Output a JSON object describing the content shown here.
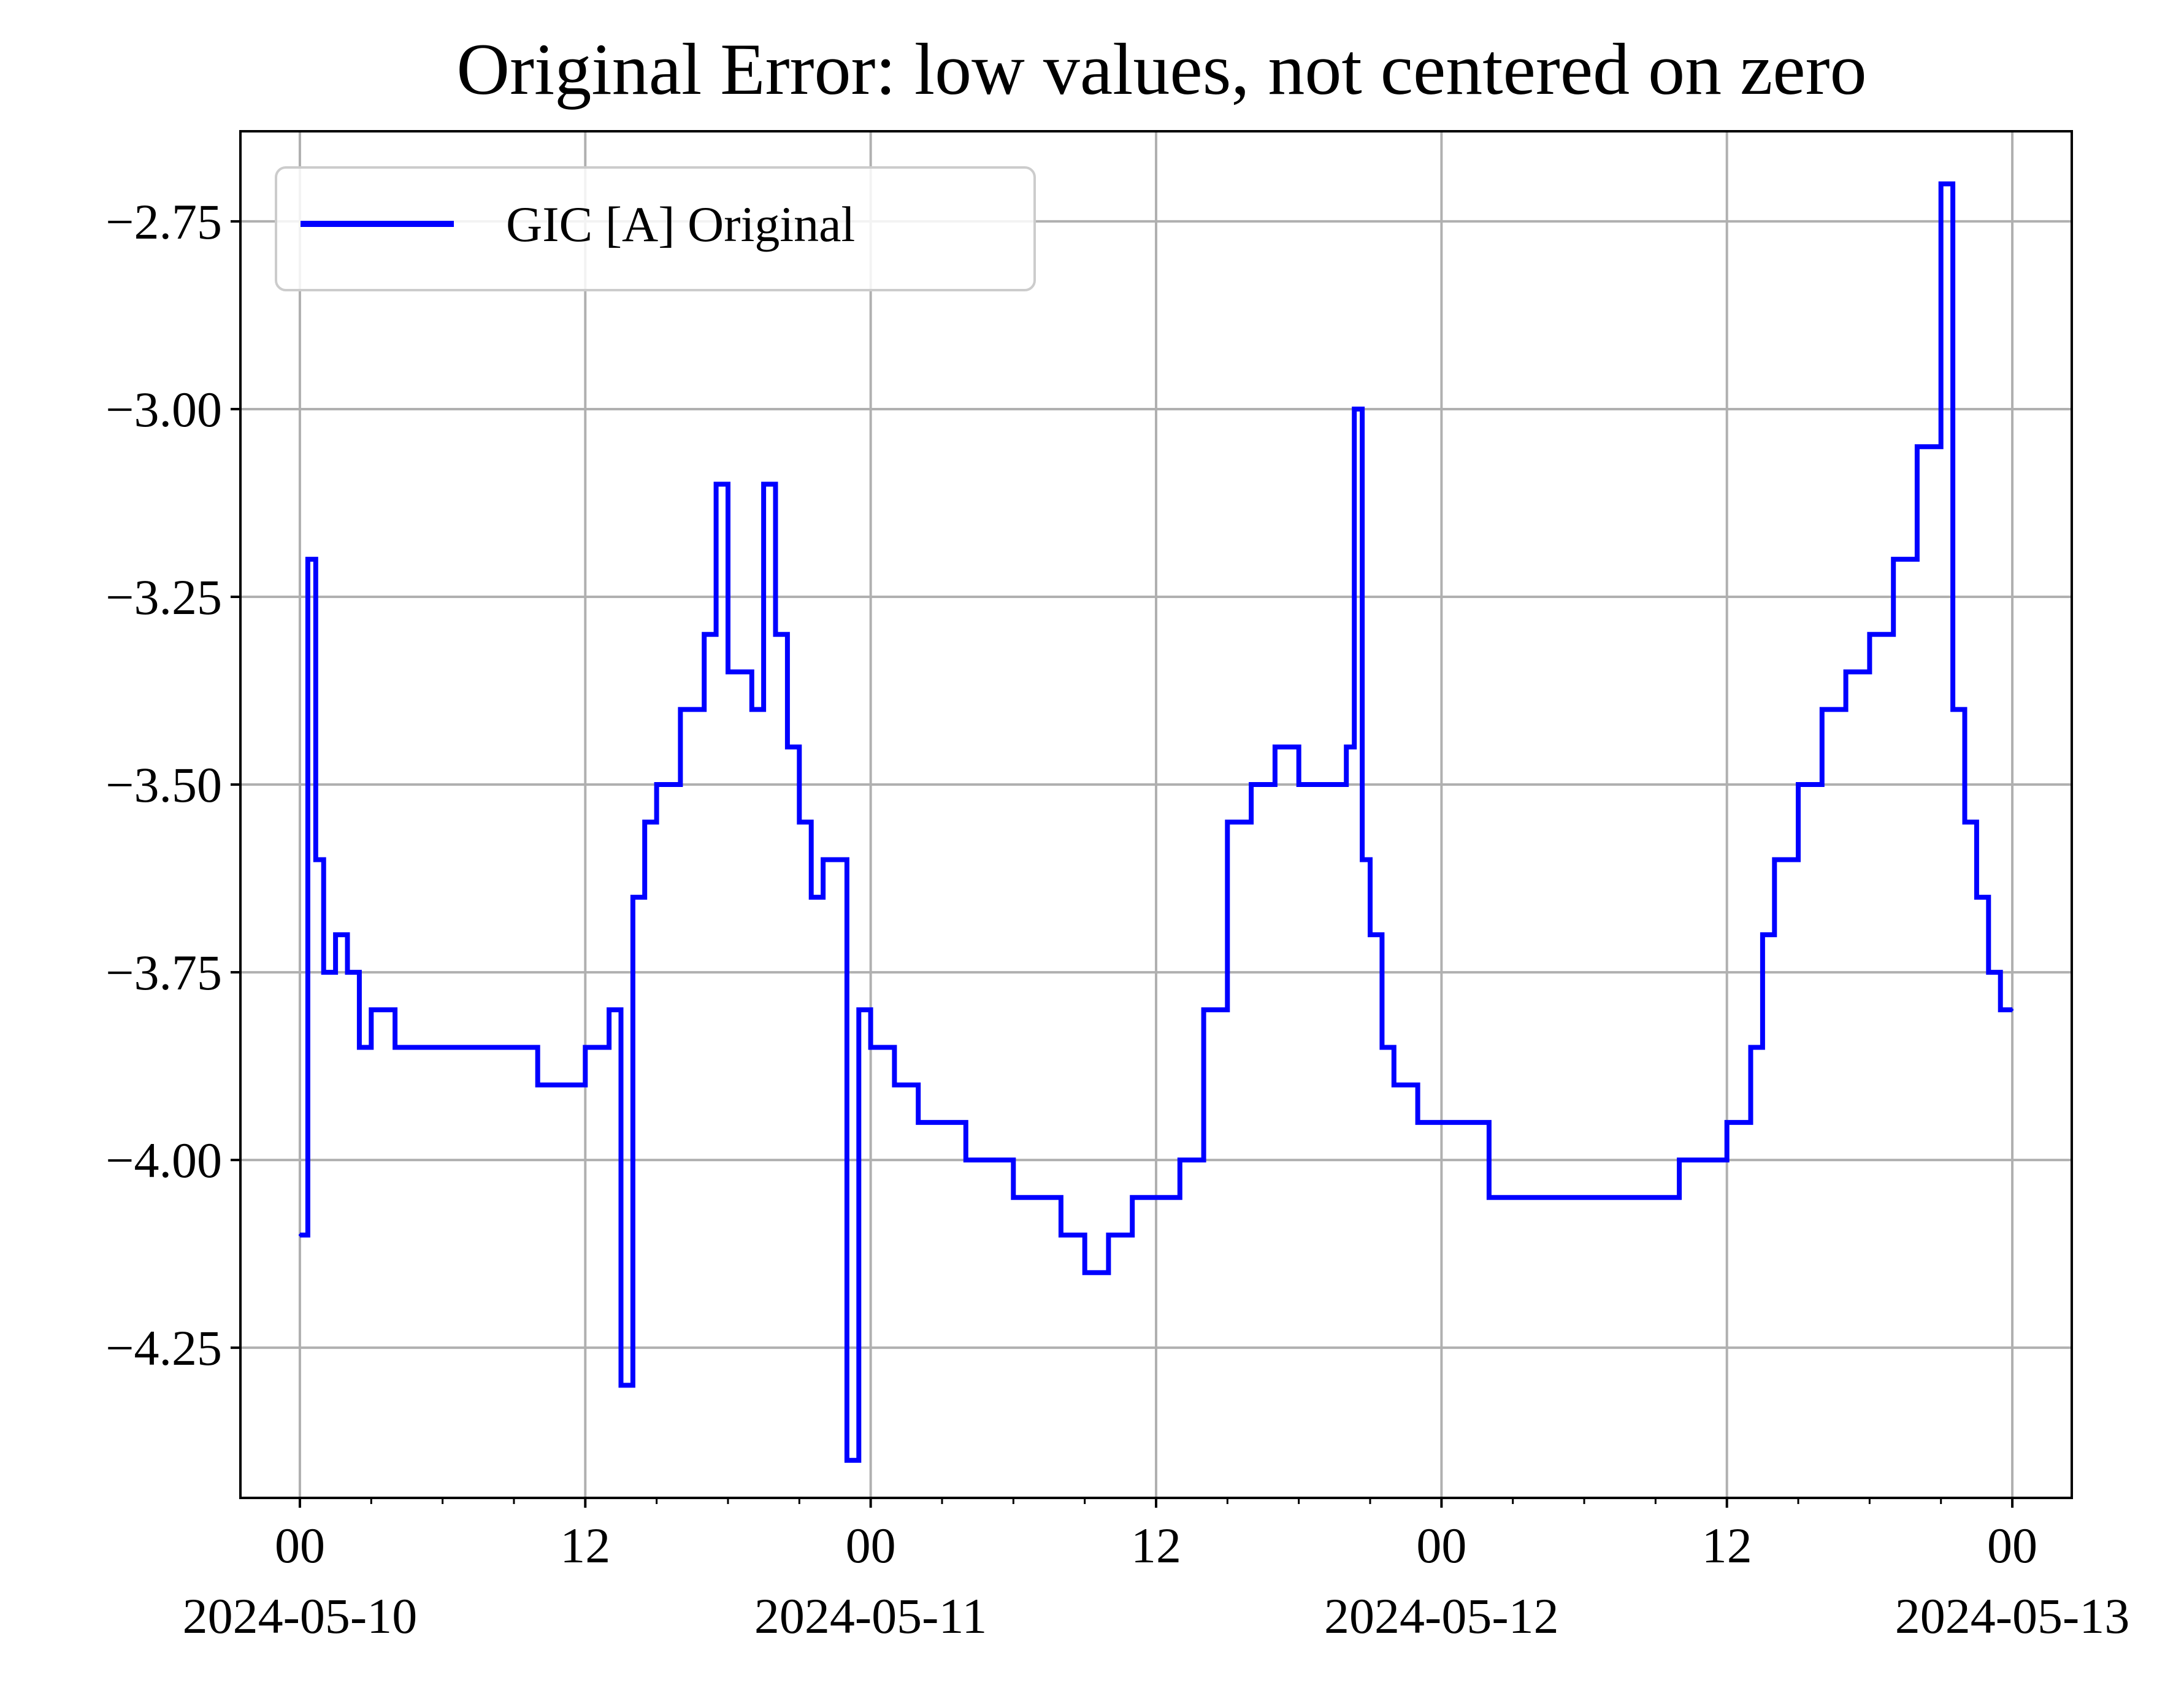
{
  "chart_data": {
    "type": "line",
    "title": "Original Error: low values, not centered on zero",
    "xlabel": "",
    "ylabel": "",
    "xlim": [
      "2024-05-09T21:30",
      "2024-05-13T02:30"
    ],
    "ylim": [
      -4.45,
      -2.63
    ],
    "grid": true,
    "legend": {
      "location": "upper-left",
      "entries": [
        "GIC [A] Original"
      ]
    },
    "x_major_ticks": [
      {
        "t": "2024-05-10T00:00",
        "label": [
          "00",
          "2024-05-10"
        ]
      },
      {
        "t": "2024-05-10T12:00",
        "label": [
          "12",
          ""
        ]
      },
      {
        "t": "2024-05-11T00:00",
        "label": [
          "00",
          "2024-05-11"
        ]
      },
      {
        "t": "2024-05-11T12:00",
        "label": [
          "12",
          ""
        ]
      },
      {
        "t": "2024-05-12T00:00",
        "label": [
          "00",
          "2024-05-12"
        ]
      },
      {
        "t": "2024-05-12T12:00",
        "label": [
          "12",
          ""
        ]
      },
      {
        "t": "2024-05-13T00:00",
        "label": [
          "00",
          "2024-05-13"
        ]
      }
    ],
    "x_minor_tick_hours": 3,
    "y_ticks": [
      {
        "v": -2.75,
        "label": "−2.75"
      },
      {
        "v": -3.0,
        "label": "−3.00"
      },
      {
        "v": -3.25,
        "label": "−3.25"
      },
      {
        "v": -3.5,
        "label": "−3.50"
      },
      {
        "v": -3.75,
        "label": "−3.75"
      },
      {
        "v": -4.0,
        "label": "−4.00"
      },
      {
        "v": -4.25,
        "label": "−4.25"
      }
    ],
    "series": [
      {
        "name": "GIC [A] Original",
        "color": "#0000ff",
        "x": [
          "2024-05-10T00:00",
          "2024-05-10T00:20",
          "2024-05-10T00:40",
          "2024-05-10T01:00",
          "2024-05-10T01:30",
          "2024-05-10T02:00",
          "2024-05-10T02:30",
          "2024-05-10T03:00",
          "2024-05-10T04:00",
          "2024-05-10T05:00",
          "2024-05-10T06:00",
          "2024-05-10T07:00",
          "2024-05-10T08:00",
          "2024-05-10T09:00",
          "2024-05-10T10:00",
          "2024-05-10T11:00",
          "2024-05-10T12:00",
          "2024-05-10T13:00",
          "2024-05-10T13:30",
          "2024-05-10T14:00",
          "2024-05-10T14:30",
          "2024-05-10T15:00",
          "2024-05-10T16:00",
          "2024-05-10T17:00",
          "2024-05-10T17:30",
          "2024-05-10T18:00",
          "2024-05-10T19:00",
          "2024-05-10T19:30",
          "2024-05-10T20:00",
          "2024-05-10T20:30",
          "2024-05-10T21:00",
          "2024-05-10T21:30",
          "2024-05-10T22:00",
          "2024-05-10T22:30",
          "2024-05-10T23:00",
          "2024-05-10T23:30",
          "2024-05-11T00:00",
          "2024-05-11T01:00",
          "2024-05-11T02:00",
          "2024-05-11T03:00",
          "2024-05-11T04:00",
          "2024-05-11T05:00",
          "2024-05-11T06:00",
          "2024-05-11T07:00",
          "2024-05-11T08:00",
          "2024-05-11T09:00",
          "2024-05-11T10:00",
          "2024-05-11T11:00",
          "2024-05-11T12:00",
          "2024-05-11T13:00",
          "2024-05-11T14:00",
          "2024-05-11T15:00",
          "2024-05-11T16:00",
          "2024-05-11T17:00",
          "2024-05-11T18:00",
          "2024-05-11T19:00",
          "2024-05-11T20:00",
          "2024-05-11T20:20",
          "2024-05-11T20:40",
          "2024-05-11T21:00",
          "2024-05-11T21:30",
          "2024-05-11T22:00",
          "2024-05-11T23:00",
          "2024-05-12T00:00",
          "2024-05-12T01:00",
          "2024-05-12T02:00",
          "2024-05-12T03:00",
          "2024-05-12T04:00",
          "2024-05-12T05:00",
          "2024-05-12T06:00",
          "2024-05-12T07:00",
          "2024-05-12T08:00",
          "2024-05-12T09:00",
          "2024-05-12T10:00",
          "2024-05-12T11:00",
          "2024-05-12T12:00",
          "2024-05-12T13:00",
          "2024-05-12T13:30",
          "2024-05-12T14:00",
          "2024-05-12T15:00",
          "2024-05-12T16:00",
          "2024-05-12T17:00",
          "2024-05-12T18:00",
          "2024-05-12T19:00",
          "2024-05-12T20:00",
          "2024-05-12T21:00",
          "2024-05-12T21:30",
          "2024-05-12T22:00",
          "2024-05-12T22:30",
          "2024-05-12T23:00",
          "2024-05-12T23:30",
          "2024-05-13T00:00"
        ],
        "y": [
          -4.1,
          -3.2,
          -3.6,
          -3.75,
          -3.7,
          -3.75,
          -3.85,
          -3.8,
          -3.85,
          -3.85,
          -3.85,
          -3.85,
          -3.85,
          -3.85,
          -3.9,
          -3.9,
          -3.85,
          -3.8,
          -4.3,
          -3.65,
          -3.55,
          -3.5,
          -3.4,
          -3.3,
          -3.1,
          -3.35,
          -3.4,
          -3.1,
          -3.3,
          -3.45,
          -3.55,
          -3.65,
          -3.6,
          -3.6,
          -4.4,
          -3.8,
          -3.85,
          -3.9,
          -3.95,
          -3.95,
          -4.0,
          -4.0,
          -4.05,
          -4.05,
          -4.1,
          -4.15,
          -4.1,
          -4.05,
          -4.05,
          -4.0,
          -3.8,
          -3.55,
          -3.5,
          -3.45,
          -3.5,
          -3.5,
          -3.45,
          -3.0,
          -3.6,
          -3.7,
          -3.85,
          -3.9,
          -3.95,
          -3.95,
          -3.95,
          -4.05,
          -4.05,
          -4.05,
          -4.05,
          -4.05,
          -4.05,
          -4.05,
          -4.05,
          -4.0,
          -4.0,
          -3.95,
          -3.85,
          -3.7,
          -3.6,
          -3.5,
          -3.4,
          -3.35,
          -3.3,
          -3.2,
          -3.05,
          -2.7,
          -3.4,
          -3.55,
          -3.65,
          -3.75,
          -3.8,
          -3.8
        ]
      }
    ]
  }
}
